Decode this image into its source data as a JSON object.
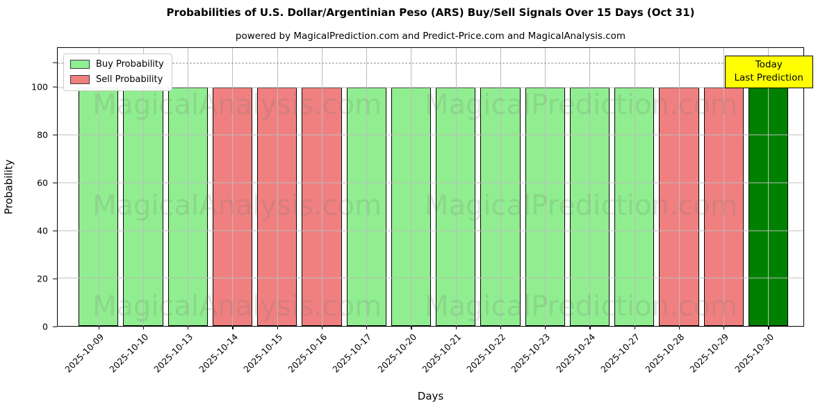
{
  "chart_data": {
    "type": "bar",
    "title": "Probabilities of U.S. Dollar/Argentinian Peso (ARS) Buy/Sell Signals Over 15 Days (Oct 31)",
    "subtitle": "powered by MagicalPrediction.com and Predict-Price.com and MagicalAnalysis.com",
    "xlabel": "Days",
    "ylabel": "Probability",
    "ylim": [
      0,
      116.5
    ],
    "yticks": [
      0,
      20,
      40,
      60,
      80,
      100
    ],
    "dashed_line_y": 110,
    "grid": true,
    "legend": {
      "position": "upper-left",
      "entries": [
        {
          "label": "Buy Probability",
          "color": "#90EE90"
        },
        {
          "label": "Sell Probability",
          "color": "#F08080"
        }
      ]
    },
    "annotation": {
      "line1": "Today",
      "line2": "Last Prediction",
      "bg": "#FFFF00"
    },
    "watermarks": [
      "MagicalAnalysis.com",
      "MagicalPrediction.com"
    ],
    "colors": {
      "buy": "#90EE90",
      "sell": "#F08080",
      "today": "#008000",
      "edge": "#000000"
    },
    "categories": [
      "2025-10-09",
      "2025-10-10",
      "2025-10-13",
      "2025-10-14",
      "2025-10-15",
      "2025-10-16",
      "2025-10-17",
      "2025-10-20",
      "2025-10-21",
      "2025-10-22",
      "2025-10-23",
      "2025-10-24",
      "2025-10-27",
      "2025-10-28",
      "2025-10-29",
      "2025-10-30"
    ],
    "bars": [
      {
        "date": "2025-10-09",
        "value": 100,
        "signal": "buy",
        "is_today": false
      },
      {
        "date": "2025-10-10",
        "value": 100,
        "signal": "buy",
        "is_today": false
      },
      {
        "date": "2025-10-13",
        "value": 100,
        "signal": "buy",
        "is_today": false
      },
      {
        "date": "2025-10-14",
        "value": 100,
        "signal": "sell",
        "is_today": false
      },
      {
        "date": "2025-10-15",
        "value": 100,
        "signal": "sell",
        "is_today": false
      },
      {
        "date": "2025-10-16",
        "value": 100,
        "signal": "sell",
        "is_today": false
      },
      {
        "date": "2025-10-17",
        "value": 100,
        "signal": "buy",
        "is_today": false
      },
      {
        "date": "2025-10-20",
        "value": 100,
        "signal": "buy",
        "is_today": false
      },
      {
        "date": "2025-10-21",
        "value": 100,
        "signal": "buy",
        "is_today": false
      },
      {
        "date": "2025-10-22",
        "value": 100,
        "signal": "buy",
        "is_today": false
      },
      {
        "date": "2025-10-23",
        "value": 100,
        "signal": "buy",
        "is_today": false
      },
      {
        "date": "2025-10-24",
        "value": 100,
        "signal": "buy",
        "is_today": false
      },
      {
        "date": "2025-10-27",
        "value": 100,
        "signal": "buy",
        "is_today": false
      },
      {
        "date": "2025-10-28",
        "value": 100,
        "signal": "sell",
        "is_today": false
      },
      {
        "date": "2025-10-29",
        "value": 100,
        "signal": "sell",
        "is_today": false
      },
      {
        "date": "2025-10-30",
        "value": 100,
        "signal": "buy",
        "is_today": true
      }
    ]
  }
}
